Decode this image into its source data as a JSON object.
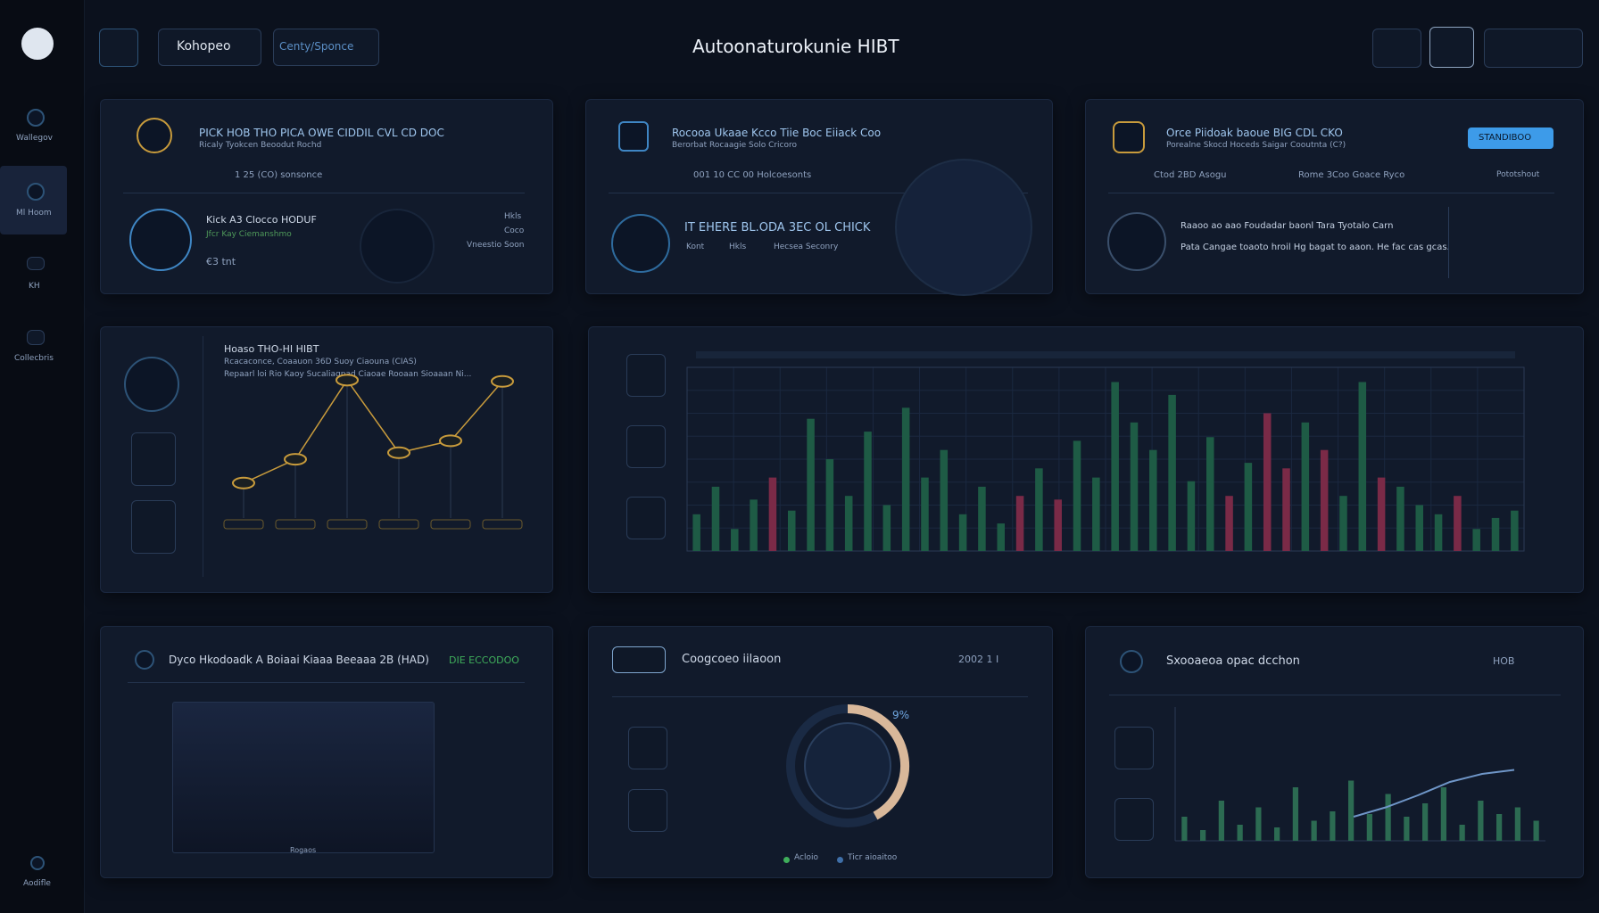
{
  "header": {
    "title": "Autoonaturokunie HIBT",
    "tabs": [
      "Kohopeo",
      "Centy/Sponce"
    ]
  },
  "sidebar": {
    "items": [
      "Wallegov",
      "Ml Hoom",
      "KH",
      "Collecbris"
    ],
    "footer": "Aodifle"
  },
  "cards": [
    {
      "title": "PICK HOB THO PICA OWE CIDDIL CVL CD DOC",
      "subtitle": "Ricaly Tyokcen Beoodut Rochd",
      "meta": "1 25 (CO) sonsonce",
      "name": "Kick A3 Clocco HODUF",
      "note": "Jfcr Kay Ciemanshmo",
      "amount": "€3 tnt",
      "side": [
        "Hkls",
        "Coco",
        "Vneestio Soon"
      ]
    },
    {
      "title": "Rocooa Ukaae Kcco Tiie Boc Eiiack Coo",
      "subtitle": "Berorbat Rocaagie Solo Cricoro",
      "meta": "001 10 CC 00 Holcoesonts",
      "name": "IT EHERE BL.ODA 3EC OL CHICK",
      "tags": [
        "Kont",
        "Hkls",
        "Hecsea Seconry"
      ]
    },
    {
      "title": "Orce Piidoak baoue BIG CDL CKO",
      "subtitle": "Porealne Skocd Hoceds Saigar Cooutnta (C?)",
      "button": "STANDIBOO",
      "meta": "Ctod 2BD Asogu",
      "meta2": "Rome 3Coo Goace Ryco",
      "right": "Pototshout",
      "line1": "Raaoo ao aao Foudadar baonl Tara Tyotalo Carn",
      "line2": "Pata Cangae toaoto hroil Hg bagat to aaon. He fac cas gcas."
    }
  ],
  "line_panel": {
    "title": "Hoaso THO-HI HIBT",
    "subtitle": "Rcacaconce, Coaauon 36D Suoy Ciaouna (CIAS)",
    "note": "Repaarl loi Rio Kaoy Sucaliagpad Ciaoae Rooaan Sioaaan Ni...",
    "values": [
      13,
      31,
      91,
      36,
      45,
      90
    ],
    "color": "#c89b3c"
  },
  "bar_panel": {
    "values": [
      20,
      35,
      12,
      28,
      40,
      22,
      72,
      50,
      30,
      65,
      25,
      78,
      40,
      55,
      20,
      35,
      15,
      30,
      45,
      28,
      60,
      40,
      92,
      70,
      55,
      85,
      38,
      62,
      30,
      48,
      75,
      45,
      70,
      55,
      30,
      92,
      40,
      35,
      25,
      20,
      30,
      12,
      18,
      22
    ],
    "colors": [
      "#1e5b45",
      "#1e5b45",
      "#1e5b45",
      "#1e5b45",
      "#7a2a47",
      "#1e5b45",
      "#1e5b45",
      "#1e5b45",
      "#1e5b45",
      "#1e5b45",
      "#1e5b45",
      "#1e5b45",
      "#1e5b45",
      "#1e5b45",
      "#1e5b45",
      "#1e5b45",
      "#1e5b45",
      "#7a2a47",
      "#1e5b45",
      "#7a2a47",
      "#1e5b45",
      "#1e5b45",
      "#1e5b45",
      "#1e5b45",
      "#1e5b45",
      "#1e5b45",
      "#1e5b45",
      "#1e5b45",
      "#7a2a47",
      "#1e5b45",
      "#7a2a47",
      "#7a2a47",
      "#1e5b45",
      "#7a2a47",
      "#1e5b45",
      "#1e5b45",
      "#7a2a47",
      "#1e5b45",
      "#1e5b45",
      "#1e5b45",
      "#7a2a47",
      "#1e5b45",
      "#1e5b45",
      "#1e5b45"
    ]
  },
  "bottom": [
    {
      "title": "Dyco Hkodoadk A Boiaai Kiaaa Beeaaa 2B (HAD)",
      "badge": "DIE ECCODOO",
      "caption": "Rogaos"
    },
    {
      "title": "Coogcoeo iilaoon",
      "side": "2002 1 I",
      "donut_label": "9%",
      "legend": [
        "Acloio",
        "Ticr aioaitoo"
      ]
    },
    {
      "title": "Sxooaeoa opac dcchon",
      "side": "HOB",
      "bars": [
        18,
        8,
        30,
        12,
        25,
        10,
        40,
        15,
        22,
        45,
        20,
        35,
        18,
        28,
        40,
        12,
        30,
        20,
        25,
        15
      ],
      "bar_color": "#2c6b52",
      "curve": [
        18,
        25,
        34,
        44,
        50,
        53
      ],
      "curve_color": "#6f96c8"
    }
  ]
}
